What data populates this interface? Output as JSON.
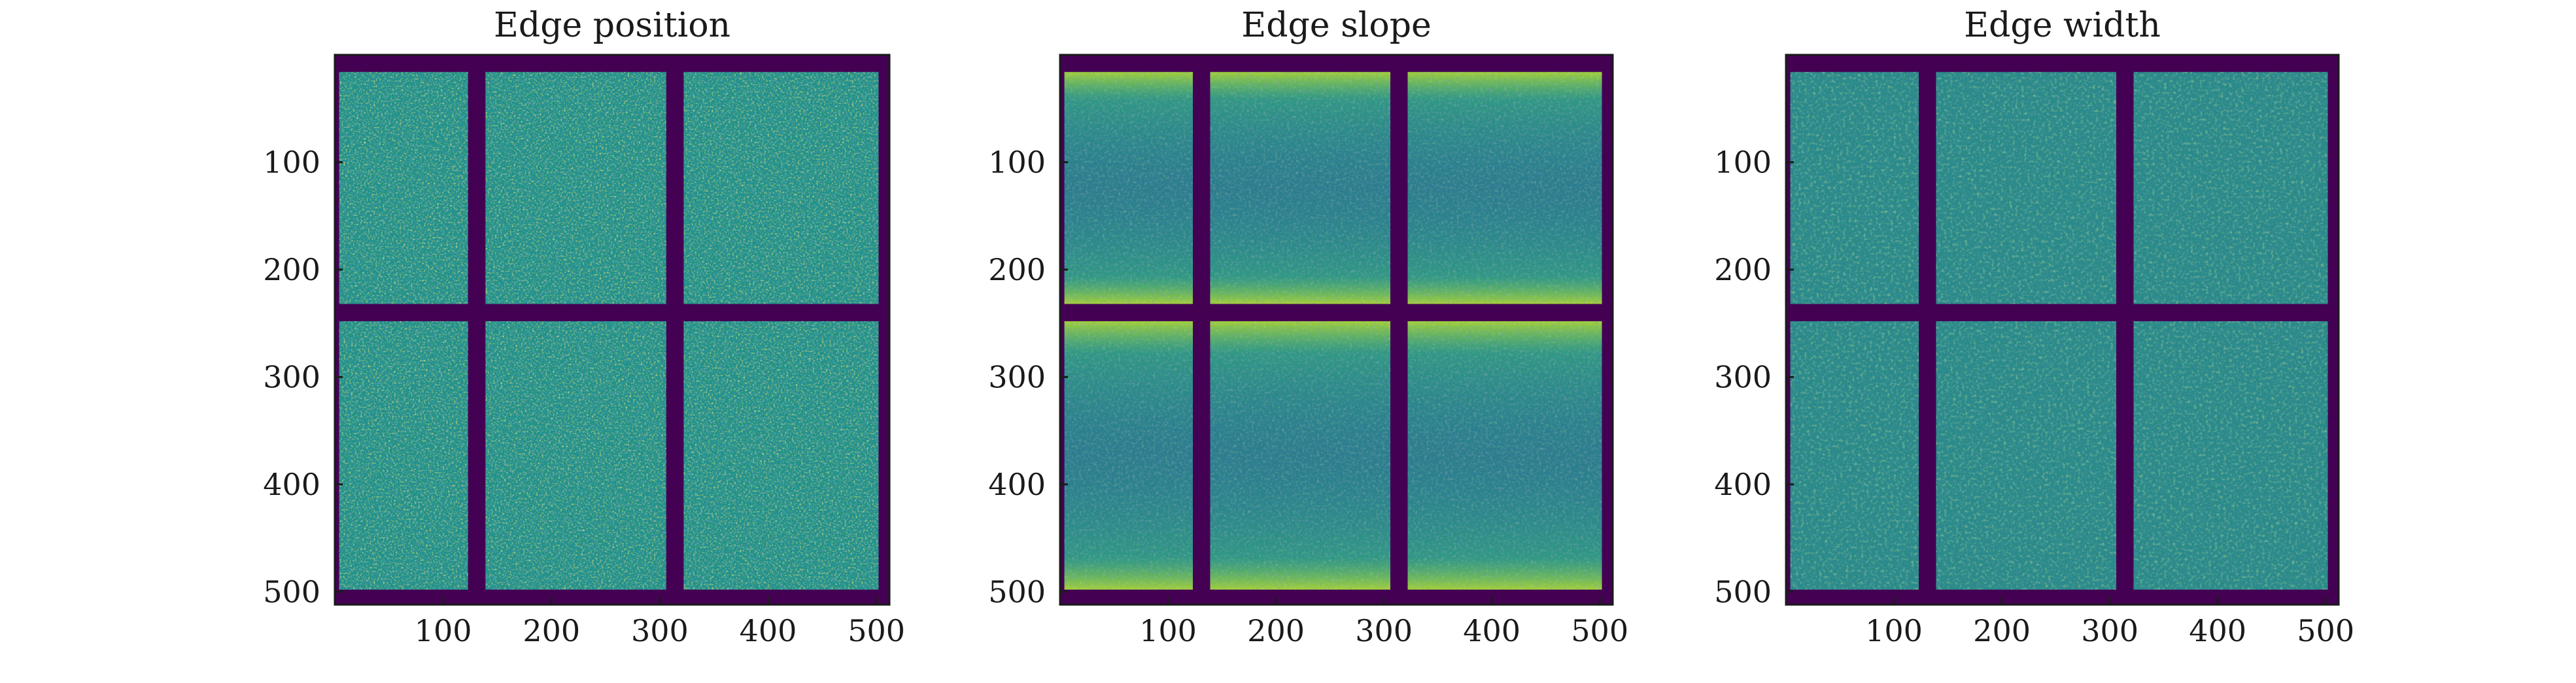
{
  "chart_data": [
    {
      "type": "heatmap",
      "title": "Edge position",
      "xlabel": "",
      "ylabel": "",
      "xlim": [
        0,
        512
      ],
      "ylim": [
        512,
        0
      ],
      "xticks": [
        100,
        200,
        300,
        400,
        500
      ],
      "yticks": [
        100,
        200,
        300,
        400,
        500
      ],
      "colormap": "viridis",
      "grid": false,
      "pattern": "mottled"
    },
    {
      "type": "heatmap",
      "title": "Edge slope",
      "xlabel": "",
      "ylabel": "",
      "xlim": [
        0,
        512
      ],
      "ylim": [
        512,
        0
      ],
      "xticks": [
        100,
        200,
        300,
        400,
        500
      ],
      "yticks": [
        100,
        200,
        300,
        400,
        500
      ],
      "colormap": "viridis",
      "grid": false,
      "pattern": "edge-bright"
    },
    {
      "type": "heatmap",
      "title": "Edge width",
      "xlabel": "",
      "ylabel": "",
      "xlim": [
        0,
        512
      ],
      "ylim": [
        512,
        0
      ],
      "xticks": [
        100,
        200,
        300,
        400,
        500
      ],
      "yticks": [
        100,
        200,
        300,
        400,
        500
      ],
      "colormap": "viridis",
      "grid": false,
      "pattern": "uniform"
    }
  ],
  "colors": {
    "background_dark": "#440154",
    "viridis_low": "#3b528b",
    "viridis_mid": "#21918c",
    "viridis_high": "#fde725"
  }
}
